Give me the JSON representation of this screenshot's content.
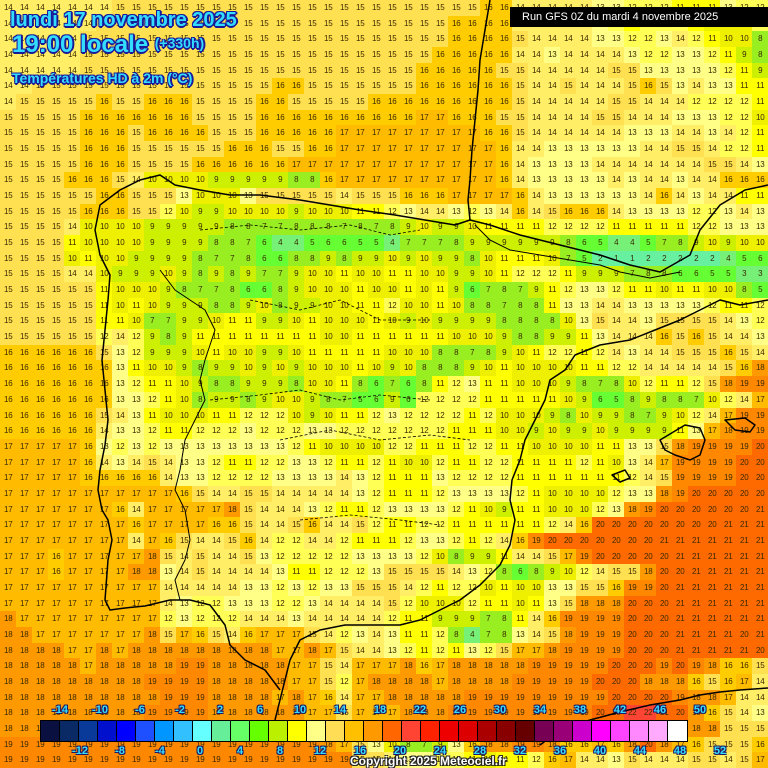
{
  "header": {
    "date_line": "lundi 17 novembre 2025",
    "time_line": "19:00 locale",
    "lead_time": "(+330h)",
    "variable": "Températures HD à 2m (°C)",
    "run_info": "Run GFS 0Z du mardi 4 novembre 2025"
  },
  "footer": {
    "copyright": "Copyright 2025 Meteociel.fr"
  },
  "map": {
    "region": "Péninsule Ibérique",
    "units": "°C",
    "grid_cols": 48,
    "grid_rows": 49,
    "rows": [
      "14 14 14 14 14 14 14 15 15 15 15 15 15 15 15 15 15 15 15 15 15 15 15 15 15 15 15 15 15 15 16 16 14 14 14 14 14 13 13 12 12 12 11 11 11 13 12 12",
      "14 14 14 14 14 14 15 15 15 15 15 15 15 15 15 15 15 15 15 15 15 15 15 15 15 15 15 15 16 16 16 16 14 14 14 14 14 13 12 11 12 12 12 11 10 10 10 12",
      "14 14 14 14 14 15 15 15 15 15 15 15 15 15 15 15 15 15 15 15 15 15 15 15 15 15 15 15 16 16 16 16 15 14 14 14 14 13 13 12 12 13 14 12 11 10 10 8",
      "14 14 14 14 14 15 15 15 15 15 15 15 15 15 15 15 15 15 15 15 15 15 15 15 15 15 15 16 16 16 16 16 14 14 13 14 14 14 14 13 12 12 13 13 12 11 9 8",
      "14 14 14 14 14 15 15 15 15 15 15 15 15 15 15 15 15 15 15 15 15 15 15 15 15 15 16 16 16 16 16 15 15 14 14 14 14 14 15 15 13 13 13 13 13 12 11 9",
      "14 14 15 15 15 15 15 15 15 15 15 15 15 15 15 15 15 16 16 15 15 15 15 15 15 15 16 16 16 16 16 16 15 14 14 15 14 14 14 15 16 15 13 14 13 13 11 11",
      "14 15 15 15 15 15 16 15 15 16 16 16 15 15 15 15 16 16 15 15 15 15 15 16 16 16 16 16 16 16 16 16 15 14 14 14 14 14 15 15 14 14 14 12 12 12 12 11",
      "15 15 15 15 15 16 16 16 16 16 16 16 15 15 15 15 16 16 16 16 16 16 16 16 16 16 17 17 16 16 16 15 15 14 14 14 14 15 15 14 14 14 13 13 13 12 12 10",
      "15 15 15 15 15 16 16 16 15 16 16 16 16 15 15 15 16 16 16 16 16 17 17 17 17 17 17 17 17 17 16 16 15 14 14 14 14 14 14 13 13 13 14 14 13 14 12 11",
      "15 15 15 15 15 16 16 16 15 15 15 15 15 15 16 16 16 15 15 16 16 17 17 17 17 17 17 17 17 17 17 16 14 14 13 13 13 13 13 13 14 14 15 15 14 12 12 11",
      "15 15 15 15 15 16 16 16 15 15 15 15 16 16 16 16 16 16 17 17 17 17 17 17 17 17 17 17 17 17 17 16 14 13 13 13 13 14 14 14 14 14 14 14 15 15 14 13",
      "15 15 15 15 16 16 16 15 14 10 10 10 10 9 9 9 9 9 8 8 16 17 17 17 17 17 17 17 17 17 17 16 14 13 13 13 13 13 14 13 14 14 13 14 14 16 16 16",
      "15 15 15 15 15 15 16 16 15 15 15 13 10 10 10 13 15 15 15 15 15 14 15 15 15 16 16 16 17 17 17 17 16 14 13 13 13 13 13 13 14 16 14 13 14 14 11 11",
      "15 15 15 15 15 16 16 16 15 15 12 10 9 9 10 10 10 10 9 10 10 10 11 11 12 13 14 14 13 12 13 14 16 14 15 16 16 16 14 13 13 13 13 12 12 13 14 13",
      "15 15 15 15 14 10 10 10 10 9 9 9 9 9 8 8 7 7 8 8 8 7 8 7 8 9 10 9 9 10 11 11 11 11 12 12 12 12 11 11 11 11 11 12 12 13 13 13",
      "15 15 15 15 11 10 10 10 10 9 9 9 9 8 8 7 6 4 4 5 6 6 5 5 4 7 7 7 8 9 9 9 9 9 9 8 6 5 4 4 5 7 8 9 10 9 10 10",
      "15 15 15 15 10 11 10 10 9 9 9 9 8 7 7 8 6 6 8 8 9 8 9 9 10 9 10 9 9 8 10 11 11 11 10 7 5 2 1 1 2 2 2 2 2 4 5 6",
      "15 15 15 15 14 14 10 9 9 9 10 9 8 9 8 9 7 7 9 10 10 11 10 10 11 11 10 10 9 9 10 11 12 12 12 11 9 9 9 7 8 8 6 6 5 5 3 3",
      "15 15 15 15 15 15 11 10 10 10 9 8 7 7 8 6 6 8 9 10 10 10 11 10 10 11 10 11 9 6 7 8 7 9 11 12 13 13 12 11 11 10 11 11 10 10 8 5",
      "15 15 15 15 15 15 11 10 11 10 9 9 9 8 8 9 10 8 9 9 10 10 11 11 12 10 10 11 10 8 8 7 8 8 11 13 13 14 14 13 13 13 13 13 12 11 11 12",
      "15 15 15 15 15 15 11 11 10 7 7 9 9 10 11 11 9 9 10 11 10 10 10 11 10 9 10 9 9 9 9 8 8 8 8 10 13 15 14 14 13 15 15 15 15 14 13 12",
      "15 15 15 15 15 15 12 14 12 9 8 9 11 11 11 11 11 11 11 11 10 10 11 11 11 11 11 11 10 10 10 9 8 8 9 9 11 13 14 14 14 16 15 16 15 14 14 13",
      "16 16 16 16 16 16 15 13 12 9 9 9 10 11 10 10 9 9 10 11 11 11 11 11 10 10 10 8 8 7 8 9 10 11 12 12 11 12 14 13 14 14 15 15 15 16 15 14",
      "16 16 16 16 16 16 16 13 11 10 10 9 8 9 9 10 9 10 9 10 10 10 11 10 9 10 8 8 8 9 10 11 10 10 10 10 11 11 12 12 14 14 14 14 14 15 16 18",
      "16 16 16 16 16 16 16 13 12 11 11 10 9 8 8 9 9 9 8 10 10 11 8 6 7 6 8 11 12 13 11 11 10 10 10 9 8 7 8 10 12 11 11 12 15 18 19 19",
      "16 16 16 16 16 16 16 13 13 12 11 10 8 9 9 8 9 10 10 9 8 7 5 6 9 6 12 12 12 12 11 11 11 11 11 10 9 6 5 8 9 8 8 7 10 12 14 17",
      "16 16 16 16 16 16 15 14 13 11 10 10 10 11 11 12 12 12 10 9 10 11 11 12 13 12 12 12 12 11 12 10 10 10 9 8 10 9 9 8 7 9 10 12 14 17 19 19",
      "16 16 16 16 16 16 14 13 13 12 11 11 12 12 12 13 12 12 12 13 13 12 12 12 12 12 12 12 11 11 11 10 10 9 10 9 9 10 9 9 9 9 11 13 17 18 19 19",
      "17 17 17 17 17 16 13 12 13 12 13 13 13 13 13 13 13 13 12 11 10 10 10 10 12 12 11 11 11 12 12 11 11 10 10 10 10 11 11 13 13 15 18 19 19 19 19 20",
      "17 17 17 17 17 16 14 13 14 15 14 13 13 12 11 11 12 12 13 13 12 11 11 12 11 10 10 12 11 11 12 12 11 11 11 11 12 11 10 13 14 17 19 19 19 19 20 20",
      "17 17 17 17 17 16 16 16 16 16 14 13 13 12 12 12 12 13 13 13 13 14 13 12 11 11 11 13 12 12 12 12 11 11 11 11 11 11 11 12 14 15 19 19 19 19 20 20",
      "17 17 17 17 17 17 17 17 17 17 17 16 15 14 14 15 15 14 14 14 14 14 13 12 11 11 11 12 13 13 13 13 12 11 10 10 10 10 12 13 13 18 19 20 20 20 20 20",
      "17 17 17 17 17 17 17 16 14 17 17 17 17 17 18 15 14 14 14 13 12 11 11 12 13 13 13 13 12 11 10 9 11 11 10 10 10 12 13 18 19 20 20 20 20 20 20 21",
      "17 17 17 17 17 17 17 17 16 17 17 17 17 16 16 15 14 14 15 16 14 14 15 12 11 11 12 12 11 11 11 11 11 11 12 14 16 20 20 20 20 20 20 20 20 21 21 21",
      "17 17 17 17 17 17 17 17 14 17 16 15 14 14 15 16 14 12 12 14 14 12 11 11 11 12 13 13 12 11 12 14 16 19 20 20 20 20 20 20 20 21 21 21 21 21 21 21",
      "17 17 17 16 17 17 17 17 17 18 15 14 15 14 14 15 13 12 12 12 12 12 13 13 13 13 12 10 8 9 9 11 14 14 15 17 19 20 20 20 20 20 21 21 21 21 21 21",
      "17 17 17 16 17 17 17 17 18 18 13 14 15 14 14 14 14 13 11 11 12 12 12 13 15 15 15 15 14 13 12 8 6 8 9 10 12 14 15 15 18 20 20 21 21 21 21 21",
      "17 17 17 17 17 17 17 17 17 17 14 14 14 14 14 13 13 12 13 12 13 13 15 15 15 14 12 11 12 12 10 11 10 10 13 13 15 15 16 19 19 20 21 21 21 21 21 21",
      "17 17 17 17 17 17 17 17 17 17 14 13 12 12 13 13 13 12 12 13 14 14 14 14 15 12 10 10 10 12 11 11 10 11 13 15 18 18 18 20 20 20 21 21 21 21 21 21",
      "18 17 17 17 17 17 17 17 17 17 12 13 12 12 12 14 14 14 13 14 14 14 14 14 12 11 11 9 9 9 7 8 11 14 16 19 19 19 19 20 20 20 21 21 21 21 21 21",
      "18 18 17 17 17 17 17 17 17 18 15 17 16 15 14 16 17 17 17 15 14 12 13 14 13 11 11 12 8 4 7 8 13 14 15 18 19 19 19 20 20 20 21 21 21 21 20 21",
      "18 18 18 18 17 17 18 17 18 18 18 18 18 18 18 18 18 17 17 18 17 15 14 14 13 12 11 12 11 13 12 15 17 17 18 19 19 19 19 20 20 20 21 21 21 21 21 20",
      "18 18 18 18 18 17 18 18 18 18 18 19 19 18 18 18 18 18 17 17 15 14 17 17 17 18 16 17 18 18 18 18 18 19 19 19 19 19 20 20 20 19 20 19 18 16 16 15",
      "18 18 18 18 18 18 18 18 18 19 19 19 19 18 18 18 18 18 17 17 15 12 17 18 18 18 18 17 18 18 18 18 19 19 19 19 19 20 20 20 18 18 18 16 15 16 17 14",
      "18 18 18 18 18 18 18 18 18 18 19 19 19 18 18 18 18 17 18 17 16 14 17 17 18 18 18 18 18 19 19 19 19 19 19 19 19 19 20 20 20 20 19 18 18 17 14 14",
      "18 18 18 18 18 18 18 18 18 19 19 19 19 18 18 18 18 18 18 17 17 15 17 17 17 18 18 18 19 19 19 19 19 19 19 19 19 20 20 22 22 21 20 18 16 15 14 13",
      "18 18 18 18 18 18 18 18 18 18 18 18 18 18 18 18 18 18 18 17 17 14 13 13 17 17 17 18 18 19 19 19 19 19 19 19 19 19 19 21 22 20 19 18 18 15 15 15",
      "19 19 19 19 19 19 19 19 19 19 19 19 19 19 19 19 19 19 19 19 18 17 15 13 10 8 7 9 13 16 18 18 19 19 18 16 16 17 16 18 20 18 17 16 15 15 15 16",
      "19 19 19 19 19 19 19 19 19 19 19 19 19 19 19 19 19 19 19 19 19 19 15 15 14 13 13 12 12 11 10 11 11 12 16 17 14 14 13 15 14 14 14 15 15 14 15 17"
    ]
  },
  "legend": {
    "swatch_colors": [
      "#0a1040",
      "#0a2a66",
      "#0a3a99",
      "#0010cc",
      "#0000ff",
      "#1e50ff",
      "#0096ff",
      "#33c0ff",
      "#66ffff",
      "#66ee99",
      "#66ff66",
      "#66ff00",
      "#bbf000",
      "#ffff00",
      "#ffff88",
      "#ffdd55",
      "#ffc000",
      "#ff9900",
      "#ff6600",
      "#ff4433",
      "#ff2200",
      "#ee0000",
      "#dd0000",
      "#aa0000",
      "#880000",
      "#660000",
      "#770055",
      "#990077",
      "#cc00cc",
      "#ff00ff",
      "#ff44ff",
      "#ff88ff",
      "#ffaaff",
      "#ffffff"
    ],
    "top_labels": [
      "-14",
      "-10",
      "-6",
      "-2",
      "2",
      "6",
      "10",
      "14",
      "18",
      "22",
      "26",
      "30",
      "34",
      "38",
      "42",
      "46",
      "50"
    ],
    "bottom_labels": [
      "-12",
      "-8",
      "-4",
      "0",
      "4",
      "8",
      "12",
      "16",
      "20",
      "24",
      "28",
      "32",
      "36",
      "40",
      "44",
      "48",
      "52"
    ]
  },
  "color_scale": [
    {
      "min": -99,
      "color": "#66ee99"
    },
    {
      "min": 1,
      "color": "#66f0a0"
    },
    {
      "min": 3,
      "color": "#77f077"
    },
    {
      "min": 5,
      "color": "#66ff33"
    },
    {
      "min": 7,
      "color": "#99ee22"
    },
    {
      "min": 9,
      "color": "#ccf000"
    },
    {
      "min": 10,
      "color": "#eef000"
    },
    {
      "min": 11,
      "color": "#ffff00"
    },
    {
      "min": 12,
      "color": "#ffff55"
    },
    {
      "min": 13,
      "color": "#ffff88"
    },
    {
      "min": 14,
      "color": "#ffee66"
    },
    {
      "min": 15,
      "color": "#ffe050"
    },
    {
      "min": 16,
      "color": "#ffcc00"
    },
    {
      "min": 17,
      "color": "#ffbb00"
    },
    {
      "min": 18,
      "color": "#ff9900"
    },
    {
      "min": 19,
      "color": "#ff8800"
    },
    {
      "min": 20,
      "color": "#ff6a00"
    },
    {
      "min": 22,
      "color": "#ff4433"
    }
  ]
}
